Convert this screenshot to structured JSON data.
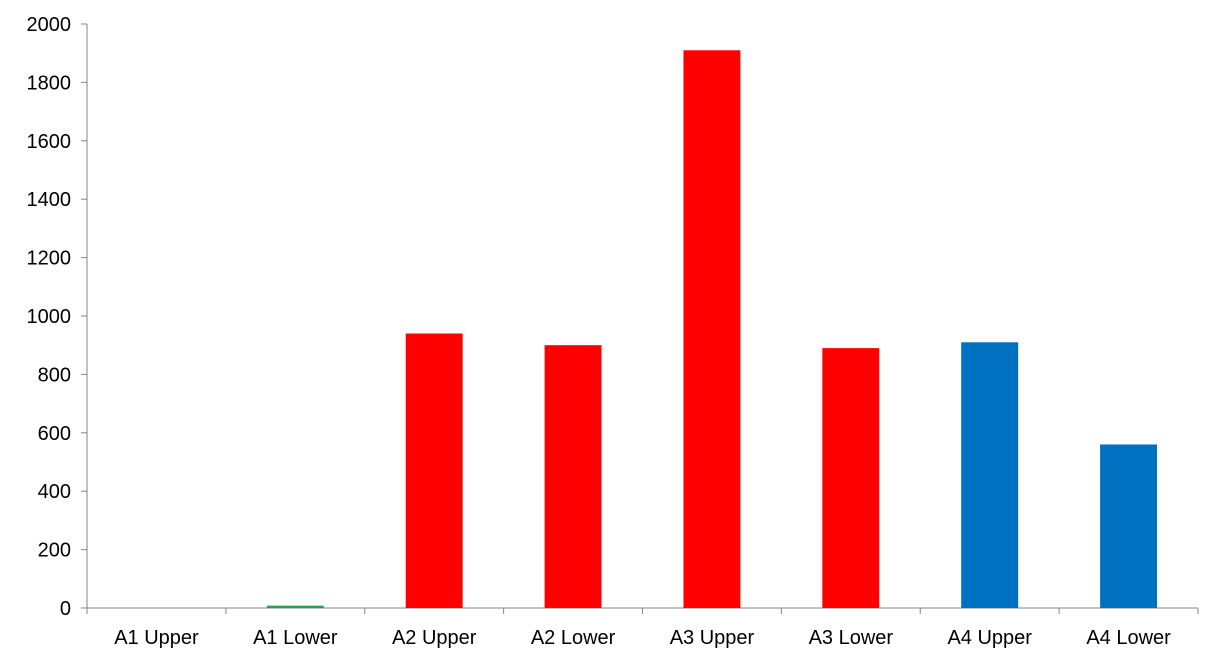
{
  "chart_data": {
    "type": "bar",
    "categories": [
      "A1 Upper",
      "A1 Lower",
      "A2 Upper",
      "A2 Lower",
      "A3 Upper",
      "A3 Lower",
      "A4 Upper",
      "A4 Lower"
    ],
    "values": [
      0,
      8,
      940,
      900,
      1910,
      890,
      910,
      560
    ],
    "colors": [
      "#22a050",
      "#22a050",
      "#ff0000",
      "#ff0000",
      "#ff0000",
      "#ff0000",
      "#0070c0",
      "#0070c0"
    ],
    "yticks": [
      "0",
      "200",
      "400",
      "600",
      "800",
      "1000",
      "1200",
      "1400",
      "1600",
      "1800",
      "2000"
    ],
    "ylim": [
      0,
      2000
    ],
    "grid": false,
    "legend": "none"
  }
}
